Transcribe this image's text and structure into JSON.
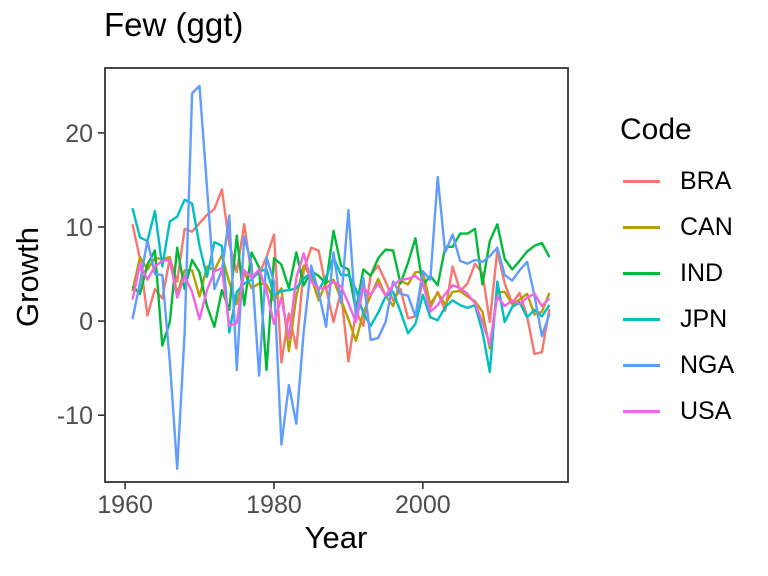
{
  "header": {
    "title": "Few (ggt)"
  },
  "colors": {
    "background": "#ffffff",
    "axis_line": "#333333",
    "axis_text": "#4d4d4d",
    "title_text": "#000000"
  },
  "chart_data": {
    "type": "line",
    "title": "Few (ggt)",
    "xlabel": "Year",
    "ylabel": "Growth",
    "legend_title": "Code",
    "legend_position": "right",
    "grid": false,
    "xlim": [
      1957.3,
      2019.5
    ],
    "ylim": [
      -17.1,
      26.9
    ],
    "xticks": [
      1960,
      1980,
      2000
    ],
    "yticks": [
      -10,
      0,
      10,
      20
    ],
    "x": [
      1961,
      1962,
      1963,
      1964,
      1965,
      1966,
      1967,
      1968,
      1969,
      1970,
      1971,
      1972,
      1973,
      1974,
      1975,
      1976,
      1977,
      1978,
      1979,
      1980,
      1981,
      1982,
      1983,
      1984,
      1985,
      1986,
      1987,
      1988,
      1989,
      1990,
      1991,
      1992,
      1993,
      1994,
      1995,
      1996,
      1997,
      1998,
      1999,
      2000,
      2001,
      2002,
      2003,
      2004,
      2005,
      2006,
      2007,
      2008,
      2009,
      2010,
      2011,
      2012,
      2013,
      2014,
      2015,
      2016,
      2017
    ],
    "series": [
      {
        "name": "BRA",
        "color": "#F8766D",
        "values": [
          10.3,
          6.6,
          0.6,
          3.4,
          2.4,
          6.7,
          4.2,
          9.8,
          9.5,
          10.4,
          11.3,
          11.9,
          14.0,
          8.2,
          5.2,
          10.3,
          4.9,
          5.0,
          6.8,
          9.2,
          -4.4,
          0.8,
          -2.9,
          5.4,
          7.8,
          7.5,
          3.5,
          -0.1,
          3.2,
          -4.3,
          1.0,
          -0.5,
          4.9,
          5.9,
          4.2,
          2.2,
          3.4,
          0.3,
          0.5,
          4.4,
          1.4,
          3.1,
          1.1,
          5.8,
          3.2,
          4.0,
          6.1,
          5.1,
          -0.1,
          7.5,
          4.0,
          1.9,
          3.0,
          0.5,
          -3.5,
          -3.3,
          1.3
        ]
      },
      {
        "name": "CAN",
        "color": "#B79F00",
        "values": [
          3.2,
          6.8,
          5.5,
          6.7,
          6.6,
          6.8,
          2.9,
          5.4,
          5.4,
          2.6,
          5.8,
          5.4,
          7.0,
          4.1,
          1.8,
          5.2,
          3.5,
          4.0,
          3.9,
          2.2,
          3.5,
          -3.2,
          2.6,
          5.9,
          4.7,
          2.2,
          4.1,
          4.4,
          2.3,
          0.2,
          -2.1,
          0.9,
          2.7,
          4.5,
          2.7,
          1.6,
          4.3,
          3.9,
          5.2,
          5.2,
          1.8,
          3.0,
          1.8,
          3.1,
          3.2,
          2.6,
          2.1,
          1.0,
          -2.9,
          3.1,
          3.1,
          1.8,
          2.3,
          2.9,
          0.7,
          1.0,
          3.0
        ]
      },
      {
        "name": "IND",
        "color": "#00BA38",
        "values": [
          3.7,
          2.9,
          6.0,
          7.5,
          -2.6,
          -0.1,
          7.8,
          3.4,
          6.5,
          5.2,
          1.6,
          -0.6,
          3.3,
          1.2,
          9.1,
          1.7,
          7.3,
          5.7,
          -5.2,
          6.7,
          6.0,
          3.5,
          7.3,
          3.8,
          5.3,
          4.8,
          4.0,
          9.6,
          5.9,
          5.5,
          1.1,
          5.5,
          4.8,
          6.7,
          7.6,
          7.5,
          4.0,
          6.2,
          8.8,
          3.8,
          4.8,
          3.8,
          7.9,
          7.9,
          9.3,
          9.3,
          9.8,
          3.9,
          8.5,
          10.3,
          6.6,
          5.5,
          6.4,
          7.4,
          8.0,
          8.3,
          6.8
        ]
      },
      {
        "name": "JPN",
        "color": "#00BFC4",
        "values": [
          12.0,
          8.9,
          8.5,
          11.7,
          5.8,
          10.6,
          11.1,
          12.9,
          12.5,
          8.0,
          4.7,
          8.4,
          8.0,
          -1.2,
          3.1,
          4.0,
          4.4,
          5.3,
          5.5,
          2.8,
          3.2,
          3.3,
          3.5,
          4.5,
          5.2,
          3.3,
          4.7,
          6.8,
          4.9,
          4.9,
          3.4,
          0.8,
          -0.5,
          0.9,
          2.6,
          3.1,
          1.0,
          -1.3,
          -0.3,
          2.8,
          0.4,
          0.1,
          1.5,
          2.2,
          1.7,
          1.4,
          1.7,
          -1.1,
          -5.4,
          4.2,
          -0.1,
          1.5,
          2.0,
          0.4,
          1.2,
          0.5,
          1.7
        ]
      },
      {
        "name": "NGA",
        "color": "#619CFF",
        "values": [
          0.2,
          4.1,
          8.6,
          5.0,
          4.9,
          -4.3,
          -15.7,
          -1.3,
          24.2,
          25.0,
          14.2,
          3.4,
          5.4,
          11.2,
          -5.2,
          9.0,
          6.0,
          -5.8,
          6.8,
          4.2,
          -13.1,
          -6.8,
          -10.9,
          -1.1,
          5.9,
          3.1,
          -0.6,
          7.3,
          1.9,
          11.8,
          0.4,
          4.6,
          -2.0,
          -1.8,
          -0.1,
          4.2,
          2.9,
          2.7,
          0.5,
          5.3,
          4.4,
          15.3,
          7.3,
          9.2,
          6.4,
          6.1,
          6.5,
          6.3,
          6.9,
          7.8,
          4.9,
          4.3,
          5.4,
          6.3,
          2.7,
          -1.6,
          0.8
        ]
      },
      {
        "name": "USA",
        "color": "#F564E2",
        "values": [
          2.3,
          6.1,
          4.4,
          5.8,
          6.4,
          6.5,
          2.5,
          4.8,
          3.1,
          0.2,
          3.3,
          5.3,
          5.6,
          -0.5,
          -0.2,
          5.4,
          4.6,
          5.5,
          3.2,
          -0.3,
          2.5,
          -1.8,
          4.6,
          7.2,
          4.2,
          3.5,
          3.5,
          4.2,
          3.7,
          1.9,
          -0.1,
          3.5,
          2.8,
          4.0,
          2.7,
          3.8,
          4.4,
          4.5,
          4.8,
          4.1,
          1.0,
          1.7,
          2.9,
          3.8,
          3.5,
          2.9,
          1.9,
          -0.1,
          -2.5,
          2.6,
          1.6,
          2.2,
          1.8,
          2.5,
          2.9,
          1.6,
          2.4
        ]
      }
    ]
  }
}
